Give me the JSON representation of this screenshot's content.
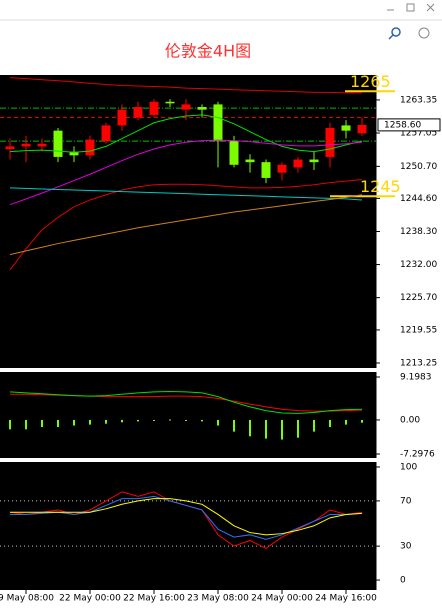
{
  "chart_data": [
    {
      "type": "candlestick",
      "title": "伦敦金4H图",
      "categories": [
        null,
        "9 May 08:00",
        null,
        null,
        null,
        "22 May 00:00",
        null,
        null,
        null,
        "22 May 16:00",
        null,
        null,
        null,
        "23 May 08:00",
        null,
        null,
        null,
        "24 May 00:00",
        null,
        null,
        null,
        "24 May 16:00",
        null
      ],
      "open": [
        1254.0,
        1254.5,
        1254.5,
        1257.5,
        1253.5,
        1252.8,
        1255.5,
        1258.5,
        1260.0,
        1260.5,
        1263.0,
        1261.5,
        1262.0,
        1262.5,
        1255.5,
        1252.0,
        1251.5,
        1249.5,
        1250.5,
        1252.0,
        1252.5,
        1258.5,
        1257.0
      ],
      "high": [
        1256.0,
        1256.5,
        1256.0,
        1258.0,
        1254.5,
        1256.5,
        1259.0,
        1262.5,
        1263.0,
        1263.5,
        1263.5,
        1263.5,
        1262.5,
        1263.0,
        1256.5,
        1253.0,
        1252.0,
        1251.5,
        1252.5,
        1253.5,
        1259.0,
        1259.5,
        1260.0
      ],
      "low": [
        1252.0,
        1251.5,
        1253.5,
        1251.5,
        1251.5,
        1252.0,
        1255.0,
        1257.5,
        1259.5,
        1260.0,
        1262.0,
        1259.5,
        1260.0,
        1250.5,
        1250.5,
        1249.5,
        1247.5,
        1248.0,
        1249.5,
        1250.0,
        1250.5,
        1256.0,
        1256.5
      ],
      "close": [
        1254.5,
        1255.0,
        1255.0,
        1252.5,
        1252.8,
        1255.8,
        1258.5,
        1261.5,
        1262.0,
        1263.0,
        1262.7,
        1262.5,
        1261.5,
        1255.5,
        1251.0,
        1251.5,
        1248.5,
        1251.0,
        1252.0,
        1251.5,
        1258.0,
        1257.5,
        1258.6
      ],
      "up_color": "#ff0000",
      "down_color": "#7cfc00",
      "series": [
        {
          "color": "#e00000",
          "values": [
            1267.6,
            1267.4,
            1267.2,
            1267.0,
            1266.8,
            1266.5,
            1266.3,
            1266.1,
            1266.0,
            1265.9,
            1265.8,
            1265.6,
            1265.5,
            1265.4,
            1265.3,
            1265.2,
            1265.1,
            1265.0,
            1264.9,
            1264.8,
            1264.8,
            1264.7,
            1264.7
          ]
        },
        {
          "color": "#e00000",
          "values": [
            1231.0,
            1235.0,
            1238.6,
            1241.0,
            1243.0,
            1244.3,
            1245.3,
            1246.2,
            1246.8,
            1247.2,
            1247.3,
            1247.3,
            1247.2,
            1247.0,
            1246.8,
            1246.6,
            1246.6,
            1246.7,
            1246.9,
            1247.2,
            1247.6,
            1247.9,
            1248.2
          ]
        },
        {
          "color": "#00e000",
          "values": [
            1253.5,
            1253.7,
            1253.8,
            1253.6,
            1253.4,
            1253.6,
            1254.5,
            1256.0,
            1257.5,
            1259.0,
            1259.8,
            1260.3,
            1260.5,
            1260.0,
            1258.8,
            1257.3,
            1255.8,
            1254.5,
            1253.8,
            1253.5,
            1254.0,
            1254.8,
            1255.5
          ]
        },
        {
          "color": "#e000e0",
          "values": [
            1243.4,
            1244.5,
            1245.6,
            1246.8,
            1248.0,
            1249.2,
            1250.5,
            1251.8,
            1253.0,
            1254.0,
            1254.8,
            1255.3,
            1255.6,
            1255.7,
            1255.6,
            1255.4,
            1255.1,
            1254.8,
            1254.6,
            1254.6,
            1254.8,
            1255.0,
            1255.3
          ]
        },
        {
          "color": "#00c8c8",
          "values": [
            1246.6,
            1246.5,
            1246.4,
            1246.3,
            1246.2,
            1246.1,
            1246.0,
            1245.9,
            1245.8,
            1245.7,
            1245.6,
            1245.5,
            1245.4,
            1245.3,
            1245.2,
            1245.1,
            1245.0,
            1244.9,
            1244.8,
            1244.7,
            1244.6,
            1244.5,
            1244.3
          ]
        },
        {
          "color": "#d08020",
          "values": [
            1233.9,
            1234.6,
            1235.3,
            1236.0,
            1236.6,
            1237.2,
            1237.8,
            1238.4,
            1239.0,
            1239.5,
            1240.0,
            1240.5,
            1241.0,
            1241.5,
            1242.0,
            1242.4,
            1242.8,
            1243.2,
            1243.6,
            1244.0,
            1244.4,
            1244.8,
            1245.3
          ]
        }
      ],
      "hlines": [
        {
          "value": 1261.8,
          "color": "#00c000",
          "style": "dashdot"
        },
        {
          "value": 1260.0,
          "color": "#e00000",
          "style": "dashed"
        },
        {
          "value": 1255.5,
          "color": "#00c000",
          "style": "dashdot"
        }
      ],
      "levels": [
        1265,
        1245
      ],
      "level_color": "#ffd700",
      "current": {
        "value": 1258.6,
        "label": "1258.60"
      },
      "ylim": [
        1212.3,
        1268.1
      ],
      "yticks": [
        1263.35,
        1257.05,
        {
          "value": 1250.7,
          "label": "1250.70"
        },
        {
          "value": 1244.6,
          "label": "1244.60"
        },
        {
          "value": 1238.3,
          "label": "1238.30"
        },
        {
          "value": 1232.0,
          "label": "1232.00"
        },
        {
          "value": 1225.7,
          "label": "1225.70"
        },
        1219.55,
        1213.25
      ]
    },
    {
      "type": "bar",
      "values": [
        -2,
        -2,
        -1.5,
        -1.5,
        -1.2,
        -1,
        -0.8,
        -0.5,
        -0.3,
        -0.2,
        0.1,
        -0.1,
        -0.3,
        -1.2,
        -2.5,
        -3.5,
        -4,
        -4.2,
        -3.8,
        -2.5,
        -1.5,
        -1,
        -0.6
      ],
      "color": "#7cfc00",
      "series": [
        {
          "color": "#ff0000",
          "values": [
            5.5,
            5.5,
            5.4,
            5.3,
            5.2,
            5.1,
            5.0,
            5.0,
            5.0,
            5.0,
            5.1,
            5.1,
            5.0,
            4.6,
            4.0,
            3.4,
            2.8,
            2.3,
            2.0,
            1.9,
            1.9,
            2.0,
            2.1
          ]
        },
        {
          "color": "#00e000",
          "values": [
            6.0,
            5.8,
            5.6,
            5.4,
            5.2,
            5.1,
            5.2,
            5.5,
            5.8,
            6.0,
            6.1,
            6.0,
            5.8,
            5.0,
            3.8,
            2.8,
            2.0,
            1.5,
            1.4,
            1.6,
            2.0,
            2.2,
            2.3
          ]
        }
      ],
      "ylim": [
        -8.15,
        10.27
      ],
      "yticks": [
        9.1983,
        {
          "value": 0,
          "label": "0.00"
        },
        -7.2976
      ]
    },
    {
      "type": "line",
      "series": [
        {
          "color": "#ff0000",
          "values": [
            60,
            58,
            60,
            62,
            58,
            62,
            70,
            78,
            74,
            78,
            70,
            66,
            62,
            40,
            30,
            35,
            28,
            38,
            45,
            52,
            62,
            58,
            60
          ]
        },
        {
          "color": "#3070ff",
          "values": [
            58,
            58,
            59,
            60,
            58,
            60,
            66,
            72,
            72,
            74,
            70,
            66,
            62,
            45,
            38,
            40,
            36,
            40,
            46,
            52,
            58,
            58,
            59
          ]
        },
        {
          "color": "#ffff00",
          "values": [
            60,
            60,
            60,
            60,
            60,
            60,
            63,
            67,
            70,
            72,
            72,
            70,
            67,
            58,
            48,
            42,
            40,
            41,
            44,
            48,
            55,
            58,
            59
          ]
        }
      ],
      "levels": [
        70,
        30
      ],
      "level_color": "#c0c0c0",
      "ylim": [
        -8.8,
        104.4
      ],
      "yticks": [
        100,
        70,
        30,
        0
      ]
    }
  ]
}
